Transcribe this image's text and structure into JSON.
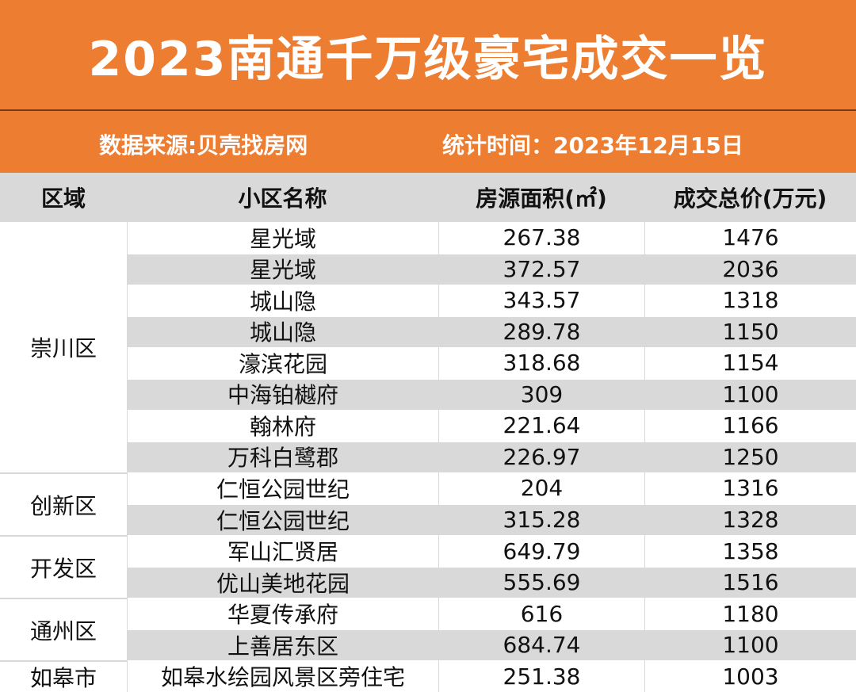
{
  "header": {
    "title": "2023南通千万级豪宅成交一览",
    "source": "数据来源:贝壳找房网",
    "date": "统计时间：2023年12月15日"
  },
  "table": {
    "columns": [
      "区域",
      "小区名称",
      "房源面积(㎡)",
      "成交总价(万元)"
    ],
    "groups": [
      {
        "district": "崇川区",
        "rows": [
          [
            "星光域",
            267.38,
            1476
          ],
          [
            "星光域",
            372.57,
            2036
          ],
          [
            "城山隐",
            343.57,
            1318
          ],
          [
            "城山隐",
            289.78,
            1150
          ],
          [
            "濠滨花园",
            318.68,
            1154
          ],
          [
            "中海铂樾府",
            309,
            1100
          ],
          [
            "翰林府",
            221.64,
            1166
          ],
          [
            "万科白鹭郡",
            226.97,
            1250
          ]
        ]
      },
      {
        "district": "创新区",
        "rows": [
          [
            "仁恒公园世纪",
            204,
            1316
          ],
          [
            "仁恒公园世纪",
            315.28,
            1328
          ]
        ]
      },
      {
        "district": "开发区",
        "rows": [
          [
            "军山汇贤居",
            649.79,
            1358
          ],
          [
            "优山美地花园",
            555.69,
            1516
          ]
        ]
      },
      {
        "district": "通州区",
        "rows": [
          [
            "华夏传承府",
            616,
            1180
          ],
          [
            "上善居东区",
            684.74,
            1100
          ]
        ]
      },
      {
        "district": "如皋市",
        "rows": [
          [
            "如皋水绘园风景区旁住宅",
            251.38,
            1003
          ]
        ]
      }
    ]
  }
}
